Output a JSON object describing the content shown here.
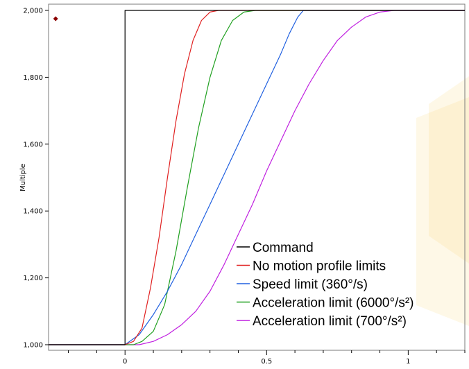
{
  "chart_data": {
    "type": "line",
    "ylabel": "Multiple",
    "xlabel": "",
    "xlim": [
      -0.27,
      1.2
    ],
    "ylim": [
      1000,
      2000
    ],
    "x_ticks": [
      {
        "value": 0,
        "label": "0"
      },
      {
        "value": 0.5,
        "label": "0.5"
      },
      {
        "value": 1,
        "label": "1"
      }
    ],
    "y_ticks": [
      {
        "value": 1000,
        "label": "1,000"
      },
      {
        "value": 1200,
        "label": "1,200"
      },
      {
        "value": 1400,
        "label": "1,400"
      },
      {
        "value": 1600,
        "label": "1,600"
      },
      {
        "value": 1800,
        "label": "1,800"
      },
      {
        "value": 2000,
        "label": "2,000"
      }
    ],
    "grid": false,
    "legend_position": "bottom-right",
    "marker": {
      "x": -0.245,
      "y": 1975,
      "color": "#8b0000"
    },
    "series": [
      {
        "name": "Command",
        "color": "#000000",
        "x": [
          -0.27,
          0,
          0,
          1.2
        ],
        "y": [
          1000,
          1000,
          2000,
          2000
        ]
      },
      {
        "name": "No motion profile limits",
        "color": "#e02020",
        "x": [
          -0.27,
          0,
          0.03,
          0.06,
          0.09,
          0.12,
          0.15,
          0.18,
          0.21,
          0.24,
          0.27,
          0.3,
          0.33,
          1.2
        ],
        "y": [
          1000,
          1000,
          1010,
          1050,
          1170,
          1320,
          1500,
          1670,
          1810,
          1910,
          1970,
          1995,
          2000,
          2000
        ]
      },
      {
        "name": "Speed limit (360°/s)",
        "color": "#2060e0",
        "x": [
          -0.27,
          0,
          0.05,
          0.1,
          0.15,
          0.2,
          0.25,
          0.3,
          0.35,
          0.4,
          0.45,
          0.5,
          0.55,
          0.58,
          0.61,
          0.63,
          1.2
        ],
        "y": [
          1000,
          1000,
          1030,
          1090,
          1160,
          1240,
          1330,
          1420,
          1510,
          1600,
          1690,
          1780,
          1870,
          1930,
          1980,
          2000,
          2000
        ]
      },
      {
        "name": "Acceleration limit (6000°/s²)",
        "color": "#20a020",
        "x": [
          -0.27,
          0.03,
          0.06,
          0.1,
          0.14,
          0.18,
          0.22,
          0.26,
          0.3,
          0.34,
          0.38,
          0.42,
          0.46,
          1.2
        ],
        "y": [
          1000,
          1000,
          1010,
          1040,
          1120,
          1280,
          1470,
          1650,
          1800,
          1910,
          1970,
          1995,
          2000,
          2000
        ]
      },
      {
        "name": "Acceleration limit (700°/s²)",
        "color": "#c020e0",
        "x": [
          -0.27,
          0.05,
          0.1,
          0.15,
          0.2,
          0.25,
          0.3,
          0.35,
          0.4,
          0.45,
          0.5,
          0.55,
          0.6,
          0.65,
          0.7,
          0.75,
          0.8,
          0.85,
          0.9,
          0.95,
          1,
          1.2
        ],
        "y": [
          1000,
          1000,
          1010,
          1030,
          1060,
          1100,
          1160,
          1240,
          1330,
          1420,
          1520,
          1610,
          1700,
          1780,
          1850,
          1910,
          1950,
          1980,
          1995,
          2000,
          2000,
          2000
        ]
      }
    ]
  }
}
